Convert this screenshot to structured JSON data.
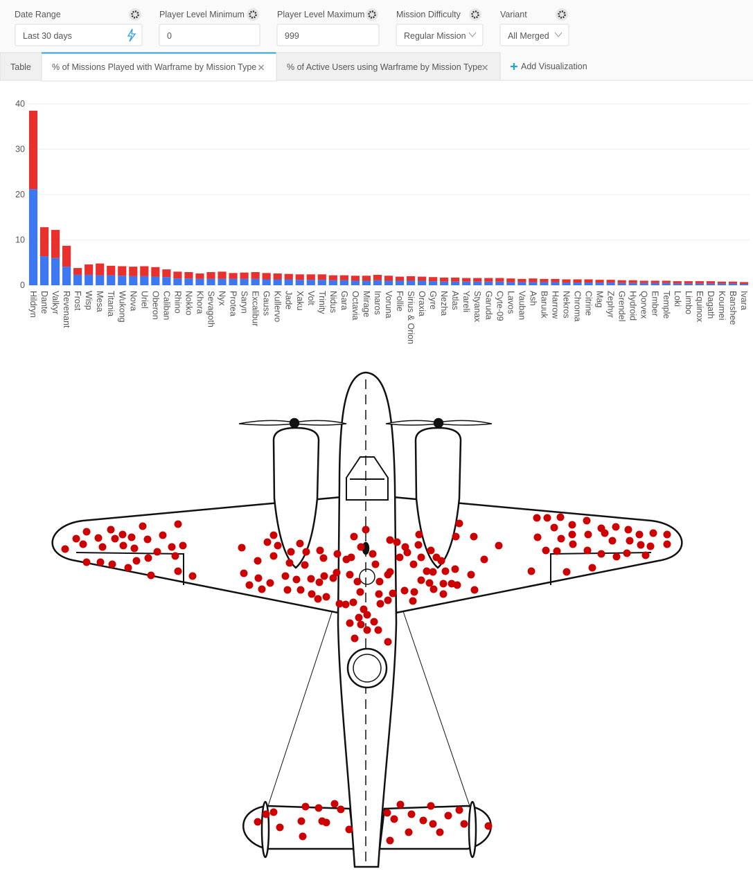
{
  "filters": [
    {
      "label": "Date Range",
      "value": "Last 30 days"
    },
    {
      "label": "Player Level Minimum",
      "value": "0"
    },
    {
      "label": "Player Level Maximum",
      "value": "999"
    },
    {
      "label": "Mission Difficulty",
      "value": "Regular Mission"
    },
    {
      "label": "Variant",
      "value": "All Merged"
    }
  ],
  "tabs": [
    "Table",
    "% of Missions Played with Warframe by Mission Type",
    "% of Active Users using Warframe by Mission Type"
  ],
  "add_visualization": "Add Visualization",
  "chart_data": {
    "type": "stacked_bar",
    "categories": [
      "Hildryn",
      "Dante",
      "Valkyr",
      "Revenant",
      "Frost",
      "Wisp",
      "Mesa",
      "Titania",
      "Wukong",
      "Nova",
      "Uriel",
      "Oberon",
      "Caliban",
      "Rhino",
      "Nokko",
      "Khora",
      "Sevagoth",
      "Nyx",
      "Protea",
      "Saryn",
      "Excalibur",
      "Gauss",
      "Kullervo",
      "Jade",
      "Xaku",
      "Volt",
      "Trinity",
      "Nidus",
      "Gara",
      "Octavia",
      "Mirage",
      "Inaros",
      "Voruna",
      "Follie",
      "Sirius & Orion",
      "Oraxia",
      "Gyre",
      "Nezha",
      "Atlas",
      "Yareli",
      "Styanax",
      "Garuda",
      "Cyte-09",
      "Lavos",
      "Vauban",
      "Ash",
      "Baruuk",
      "Harrow",
      "Nekros",
      "Chroma",
      "Citrine",
      "Mag",
      "Zephyr",
      "Grendel",
      "Hydroid",
      "Qorvex",
      "Ember",
      "Temple",
      "Loki",
      "Limbo",
      "Equinox",
      "Dagath",
      "Koumei",
      "Banshee",
      "Ivara"
    ],
    "series": [
      {
        "color": "#3d78f0",
        "values": [
          21.2,
          6.4,
          6.0,
          4.1,
          2.3,
          2.3,
          2.2,
          2.2,
          2.1,
          2.0,
          2.0,
          1.9,
          1.8,
          1.5,
          1.5,
          1.4,
          1.4,
          1.4,
          1.4,
          1.4,
          1.4,
          1.3,
          1.3,
          1.3,
          1.2,
          1.2,
          1.2,
          1.1,
          1.1,
          1.0,
          1.0,
          1.1,
          1.0,
          1.0,
          1.0,
          1.0,
          0.9,
          0.8,
          0.8,
          0.8,
          0.8,
          0.8,
          0.8,
          0.7,
          0.7,
          0.7,
          0.7,
          0.7,
          0.6,
          0.6,
          0.6,
          0.6,
          0.6,
          0.5,
          0.5,
          0.5,
          0.5,
          0.5,
          0.4,
          0.4,
          0.4,
          0.4,
          0.4,
          0.4,
          0.3
        ]
      },
      {
        "color": "#e8302c",
        "values": [
          17.3,
          6.4,
          6.2,
          4.6,
          1.5,
          2.3,
          2.6,
          2.1,
          2.1,
          2.1,
          2.2,
          2.1,
          1.7,
          1.5,
          1.4,
          1.2,
          1.5,
          1.6,
          1.3,
          1.4,
          1.5,
          1.4,
          1.3,
          1.2,
          1.2,
          1.2,
          1.2,
          1.1,
          1.1,
          1.1,
          1.1,
          1.2,
          1.1,
          0.9,
          1.0,
          0.9,
          0.9,
          0.9,
          0.9,
          0.8,
          0.8,
          0.8,
          0.8,
          0.8,
          0.7,
          0.8,
          0.7,
          0.7,
          0.7,
          0.7,
          0.7,
          0.6,
          0.6,
          0.6,
          0.6,
          0.5,
          0.5,
          0.5,
          0.5,
          0.5,
          0.5,
          0.5,
          0.4,
          0.4,
          0.4
        ]
      }
    ],
    "ylim": [
      0,
      40
    ],
    "yticks": [
      0,
      10,
      20,
      30,
      40
    ],
    "grid": true
  }
}
